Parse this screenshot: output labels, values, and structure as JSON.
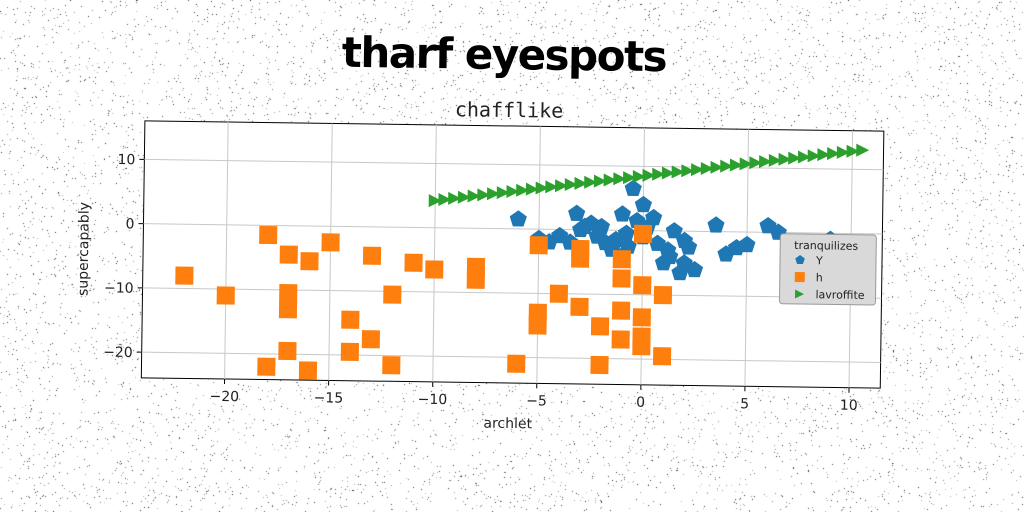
{
  "page": {
    "title": "tharf eyespots"
  },
  "chart_data": {
    "type": "scatter",
    "title": "chafflike",
    "xlabel": "archlet",
    "ylabel": "supercapably",
    "xlim": [
      -24,
      11.5
    ],
    "ylim": [
      -24,
      16
    ],
    "xticks": [
      -20,
      -15,
      -10,
      -5,
      0,
      5,
      10
    ],
    "yticks": [
      -20,
      -10,
      0,
      10
    ],
    "xtick_labels": [
      "−20",
      "−15",
      "−10",
      "−5",
      "0",
      "5",
      "10"
    ],
    "ytick_labels": [
      "−20",
      "−10",
      "0",
      "10"
    ],
    "grid": true,
    "legend": {
      "title": "tranquilizes",
      "position": "right"
    },
    "series": [
      {
        "name": "Y",
        "marker": "pentagon",
        "color": "#1f77b4",
        "points": [
          [
            -6,
            1.5
          ],
          [
            -5,
            -1.5
          ],
          [
            -4.5,
            -2
          ],
          [
            -4,
            -1
          ],
          [
            -3.5,
            -2
          ],
          [
            -3.2,
            2.5
          ],
          [
            -3,
            0
          ],
          [
            -2.5,
            1
          ],
          [
            -2.2,
            -1
          ],
          [
            -2,
            0.5
          ],
          [
            -1.8,
            -2
          ],
          [
            -1.5,
            -3
          ],
          [
            -1.3,
            -1.5
          ],
          [
            -1,
            -4
          ],
          [
            -0.8,
            -0.5
          ],
          [
            -0.7,
            -2.5
          ],
          [
            -0.5,
            6.5
          ],
          [
            -0.3,
            1.5
          ],
          [
            0,
            -1
          ],
          [
            0,
            4
          ],
          [
            0.5,
            2
          ],
          [
            0.7,
            -2
          ],
          [
            1,
            -5
          ],
          [
            1.2,
            -3
          ],
          [
            1.5,
            0
          ],
          [
            2,
            -1.5
          ],
          [
            2.2,
            -2.5
          ],
          [
            2,
            -5
          ],
          [
            2.5,
            -6
          ],
          [
            1.8,
            -6.5
          ],
          [
            3.5,
            1
          ],
          [
            4,
            -3.5
          ],
          [
            4.5,
            -2.5
          ],
          [
            5,
            -2
          ],
          [
            6,
            1
          ],
          [
            6.5,
            0
          ],
          [
            9,
            -1
          ],
          [
            -2.8,
            0.5
          ],
          [
            -1,
            2.5
          ],
          [
            0.2,
            0.5
          ],
          [
            1.3,
            -4
          ]
        ]
      },
      {
        "name": "h",
        "marker": "square",
        "color": "#ff7f0e",
        "points": [
          [
            -22,
            -8
          ],
          [
            -20,
            -11
          ],
          [
            -18,
            -1.5
          ],
          [
            -18,
            -22
          ],
          [
            -17,
            -10.5
          ],
          [
            -17,
            -13
          ],
          [
            -17,
            -19.5
          ],
          [
            -17,
            -4.5
          ],
          [
            -16,
            -5.5
          ],
          [
            -16,
            -22.5
          ],
          [
            -15,
            -2.5
          ],
          [
            -14,
            -14.5
          ],
          [
            -14,
            -19.5
          ],
          [
            -13,
            -4.5
          ],
          [
            -13,
            -17.5
          ],
          [
            -12,
            -10.5
          ],
          [
            -12,
            -21.5
          ],
          [
            -11,
            -5.5
          ],
          [
            -10,
            -6.5
          ],
          [
            -8,
            -6
          ],
          [
            -8,
            -8
          ],
          [
            -6,
            -21
          ],
          [
            -5,
            -2.5
          ],
          [
            -5,
            -13
          ],
          [
            -5,
            -15
          ],
          [
            -4,
            -10
          ],
          [
            -3,
            -3
          ],
          [
            -3,
            -4.5
          ],
          [
            -3,
            -12
          ],
          [
            -2,
            -15
          ],
          [
            -2,
            -21
          ],
          [
            -1,
            -4.5
          ],
          [
            -1,
            -7.5
          ],
          [
            -1,
            -12.5
          ],
          [
            -1,
            -17
          ],
          [
            0,
            -0.5
          ],
          [
            0,
            -8.5
          ],
          [
            0,
            -13.5
          ],
          [
            0,
            -16.5
          ],
          [
            0,
            -18
          ],
          [
            1,
            -10
          ],
          [
            1,
            -19.5
          ]
        ]
      },
      {
        "name": "lavroffite",
        "marker": "triangle-right",
        "color": "#2ca02c",
        "x_start": -10,
        "x_end": 10.5,
        "y_start": 4.2,
        "y_end": 13,
        "count": 45
      }
    ]
  }
}
